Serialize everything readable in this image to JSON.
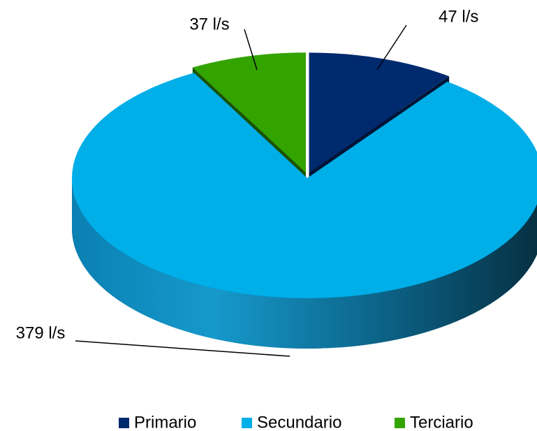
{
  "chart_data": {
    "type": "pie",
    "categories": [
      "Primario",
      "Secundario",
      "Terciario"
    ],
    "values": [
      47,
      379,
      37
    ],
    "value_labels": [
      "47 l/s",
      "379 l/s",
      "37 l/s"
    ],
    "colors": [
      "#002a6e",
      "#00aee8",
      "#33a300"
    ],
    "legend": "bottom"
  }
}
